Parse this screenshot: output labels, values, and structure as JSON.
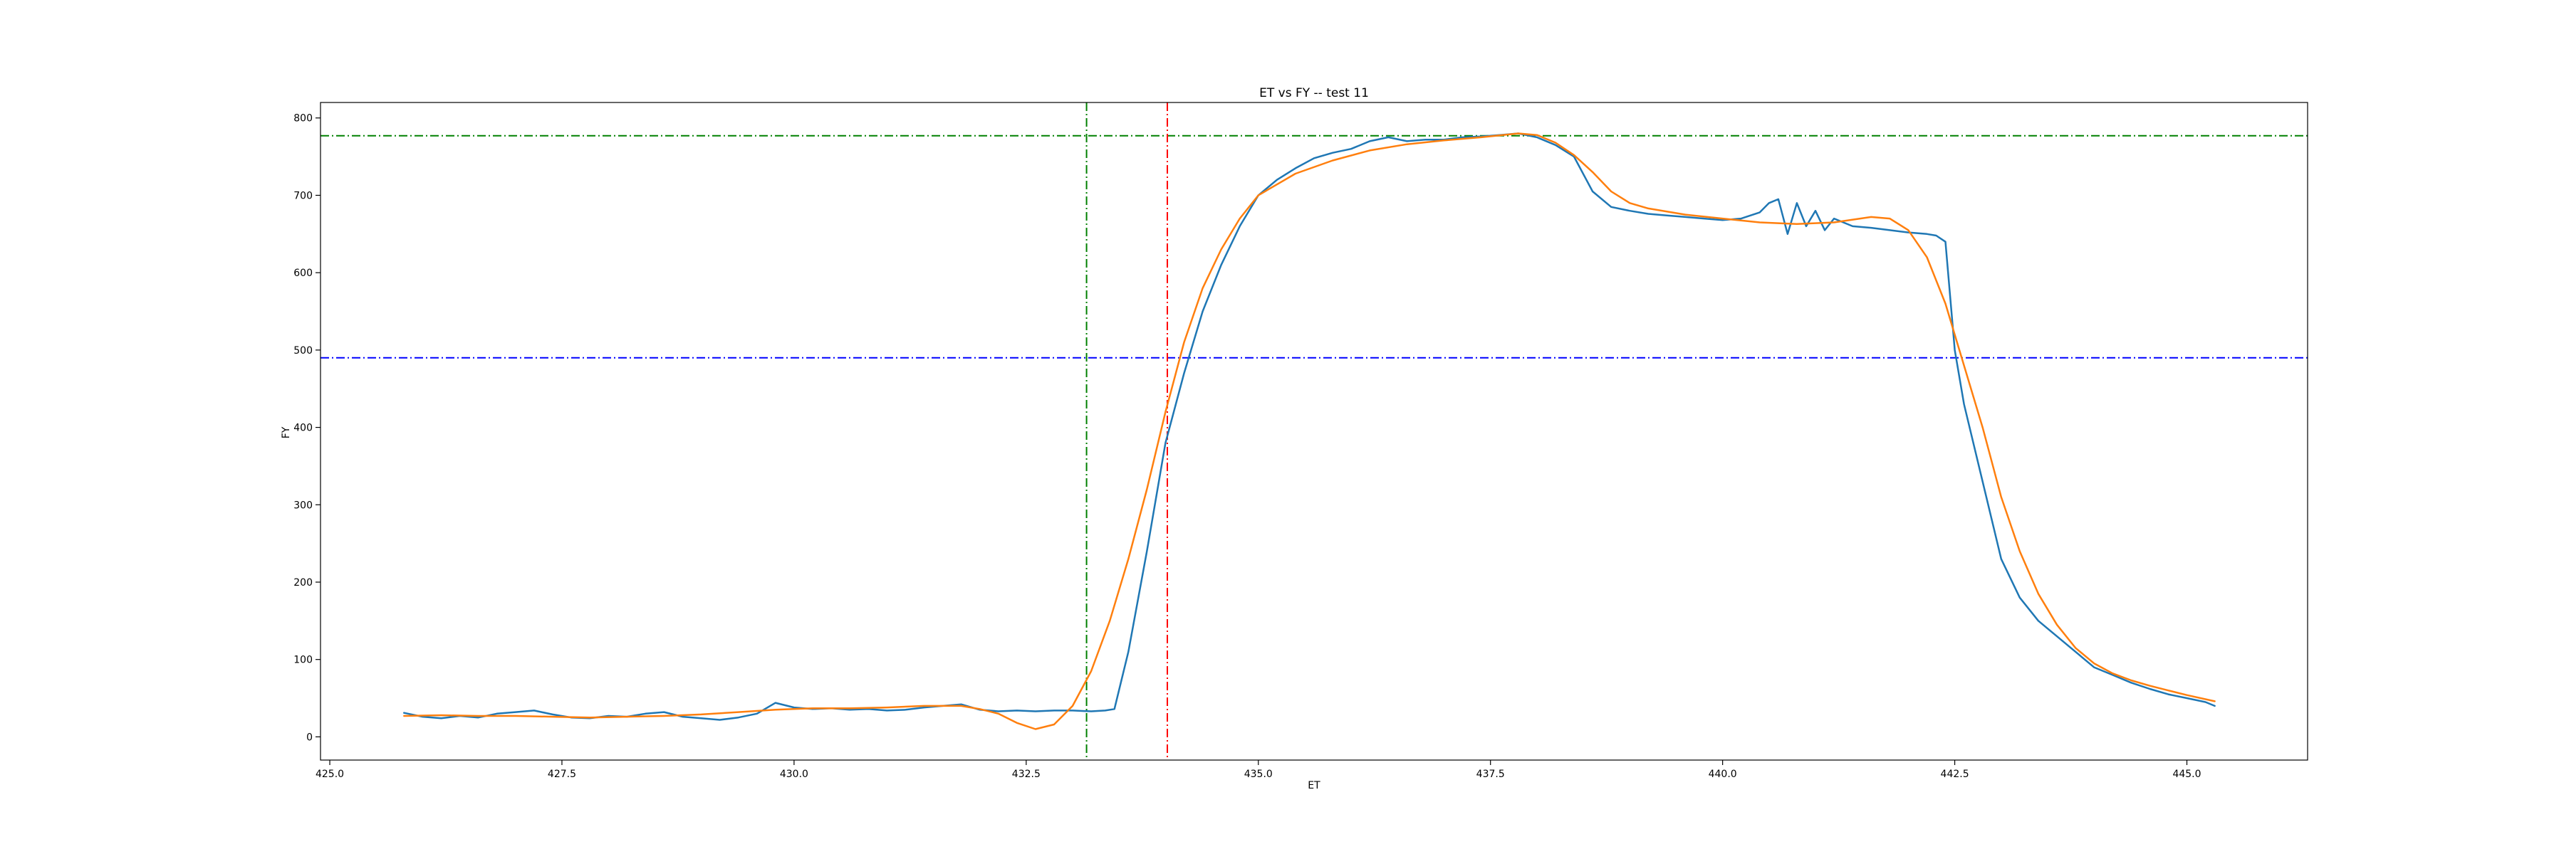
{
  "chart_data": {
    "type": "line",
    "title": "ET vs FY -- test 11",
    "xlabel": "ET",
    "ylabel": "FY",
    "xlim": [
      424.9,
      446.3
    ],
    "ylim": [
      -30,
      820
    ],
    "xticks": [
      425.0,
      427.5,
      430.0,
      432.5,
      435.0,
      437.5,
      440.0,
      442.5,
      445.0
    ],
    "xtick_labels": [
      "425.0",
      "427.5",
      "430.0",
      "432.5",
      "435.0",
      "437.5",
      "440.0",
      "442.5",
      "445.0"
    ],
    "yticks": [
      0,
      100,
      200,
      300,
      400,
      500,
      600,
      700,
      800
    ],
    "ytick_labels": [
      "0",
      "100",
      "200",
      "300",
      "400",
      "500",
      "600",
      "700",
      "800"
    ],
    "grid": false,
    "reference_lines": [
      {
        "orientation": "horizontal",
        "value": 777,
        "color": "#008000",
        "style": "dashdot"
      },
      {
        "orientation": "horizontal",
        "value": 490,
        "color": "#0000ff",
        "style": "dashdot"
      },
      {
        "orientation": "vertical",
        "value": 433.15,
        "color": "#008000",
        "style": "dashdot"
      },
      {
        "orientation": "vertical",
        "value": 434.02,
        "color": "#ff0000",
        "style": "dashdot"
      }
    ],
    "series": [
      {
        "color": "#1f77b4",
        "x": [
          425.8,
          426.0,
          426.2,
          426.4,
          426.6,
          426.8,
          427.0,
          427.2,
          427.4,
          427.6,
          427.8,
          428.0,
          428.2,
          428.4,
          428.6,
          428.8,
          429.0,
          429.2,
          429.4,
          429.6,
          429.8,
          430.0,
          430.2,
          430.4,
          430.6,
          430.8,
          431.0,
          431.2,
          431.4,
          431.6,
          431.8,
          432.0,
          432.2,
          432.4,
          432.6,
          432.8,
          433.0,
          433.2,
          433.35,
          433.45,
          433.6,
          433.8,
          434.0,
          434.2,
          434.4,
          434.6,
          434.8,
          435.0,
          435.2,
          435.4,
          435.6,
          435.8,
          436.0,
          436.2,
          436.4,
          436.6,
          436.8,
          437.0,
          437.2,
          437.4,
          437.6,
          437.8,
          438.0,
          438.2,
          438.4,
          438.6,
          438.8,
          439.0,
          439.2,
          439.4,
          439.6,
          439.8,
          440.0,
          440.2,
          440.4,
          440.5,
          440.6,
          440.7,
          440.8,
          440.9,
          441.0,
          441.1,
          441.2,
          441.4,
          441.6,
          441.8,
          442.0,
          442.2,
          442.3,
          442.4,
          442.5,
          442.6,
          442.8,
          443.0,
          443.2,
          443.4,
          443.6,
          443.8,
          444.0,
          444.2,
          444.4,
          444.6,
          444.8,
          445.0,
          445.2,
          445.3
        ],
        "y": [
          31,
          26,
          24,
          27,
          25,
          30,
          32,
          34,
          29,
          25,
          24,
          27,
          26,
          30,
          32,
          26,
          24,
          22,
          25,
          30,
          44,
          38,
          36,
          37,
          35,
          36,
          34,
          35,
          38,
          40,
          42,
          35,
          33,
          34,
          33,
          34,
          34,
          33,
          34,
          36,
          110,
          240,
          380,
          470,
          550,
          610,
          660,
          700,
          720,
          735,
          748,
          755,
          760,
          770,
          775,
          770,
          772,
          772,
          775,
          776,
          778,
          780,
          775,
          765,
          750,
          705,
          685,
          680,
          676,
          674,
          672,
          670,
          668,
          670,
          678,
          690,
          695,
          650,
          690,
          660,
          680,
          655,
          670,
          660,
          658,
          655,
          652,
          650,
          648,
          640,
          500,
          430,
          330,
          230,
          180,
          150,
          130,
          110,
          90,
          80,
          70,
          62,
          55,
          50,
          45,
          40
        ]
      },
      {
        "color": "#ff7f0e",
        "x": [
          425.8,
          426.2,
          426.6,
          427.0,
          427.4,
          427.8,
          428.2,
          428.6,
          429.0,
          429.4,
          429.8,
          430.2,
          430.6,
          431.0,
          431.4,
          431.8,
          432.0,
          432.2,
          432.4,
          432.6,
          432.8,
          433.0,
          433.2,
          433.4,
          433.6,
          433.8,
          434.0,
          434.2,
          434.4,
          434.6,
          434.8,
          435.0,
          435.4,
          435.8,
          436.2,
          436.6,
          437.0,
          437.4,
          437.8,
          438.0,
          438.2,
          438.4,
          438.6,
          438.8,
          439.0,
          439.2,
          439.6,
          440.0,
          440.4,
          440.8,
          441.2,
          441.6,
          441.8,
          442.0,
          442.2,
          442.4,
          442.6,
          442.8,
          443.0,
          443.2,
          443.4,
          443.6,
          443.8,
          444.0,
          444.2,
          444.4,
          444.6,
          444.8,
          445.0,
          445.3
        ],
        "y": [
          27,
          28,
          27,
          27,
          26,
          25,
          26,
          27,
          29,
          32,
          35,
          37,
          37,
          38,
          40,
          40,
          36,
          30,
          18,
          10,
          16,
          40,
          85,
          150,
          230,
          320,
          420,
          510,
          580,
          630,
          670,
          700,
          728,
          745,
          758,
          766,
          771,
          775,
          780,
          778,
          768,
          752,
          730,
          705,
          690,
          683,
          675,
          670,
          665,
          663,
          665,
          672,
          670,
          655,
          620,
          560,
          480,
          400,
          310,
          240,
          185,
          145,
          115,
          95,
          82,
          73,
          66,
          60,
          54,
          46
        ]
      }
    ]
  }
}
